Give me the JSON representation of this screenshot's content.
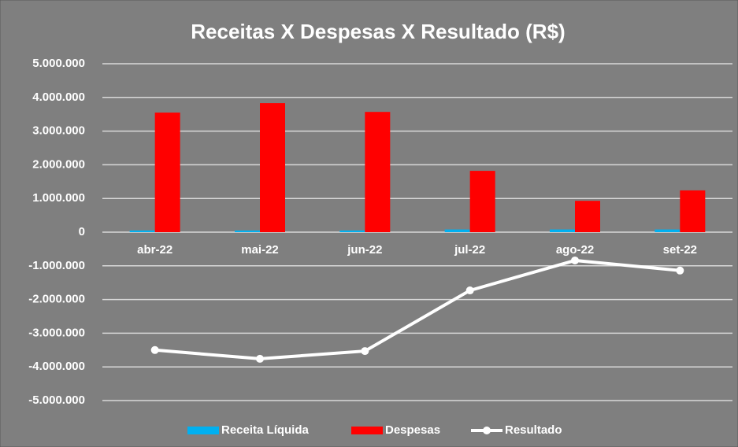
{
  "chart_data": {
    "type": "bar_line",
    "title": "Receitas X Despesas X Resultado (R$)",
    "categories": [
      "abr-22",
      "mai-22",
      "jun-22",
      "jul-22",
      "ago-22",
      "set-22"
    ],
    "series": [
      {
        "name": "Receita Líquida",
        "type": "bar",
        "color": "#00b0f0",
        "values": [
          50000,
          50000,
          50000,
          80000,
          80000,
          80000
        ]
      },
      {
        "name": "Despesas",
        "type": "bar",
        "color": "#ff0000",
        "values": [
          3550000,
          3830000,
          3570000,
          1820000,
          930000,
          1240000
        ]
      },
      {
        "name": "Resultado",
        "type": "line",
        "color": "#ffffff",
        "values": [
          -3500000,
          -3760000,
          -3530000,
          -1730000,
          -840000,
          -1140000
        ]
      }
    ],
    "ylim": [
      -5000000,
      5000000
    ],
    "yticks": [
      {
        "value": -5000000,
        "label": "-5.000.000"
      },
      {
        "value": -4000000,
        "label": "-4.000.000"
      },
      {
        "value": -3000000,
        "label": "-3.000.000"
      },
      {
        "value": -2000000,
        "label": "-2.000.000"
      },
      {
        "value": -1000000,
        "label": "-1.000.000"
      },
      0,
      {
        "value": 1000000,
        "label": "1.000.000"
      },
      {
        "value": 2000000,
        "label": "2.000.000"
      },
      {
        "value": 3000000,
        "label": "3.000.000"
      },
      {
        "value": 4000000,
        "label": "4.000.000"
      },
      {
        "value": 5000000,
        "label": "5.000.000"
      }
    ],
    "grid": true,
    "legend": "bottom"
  }
}
